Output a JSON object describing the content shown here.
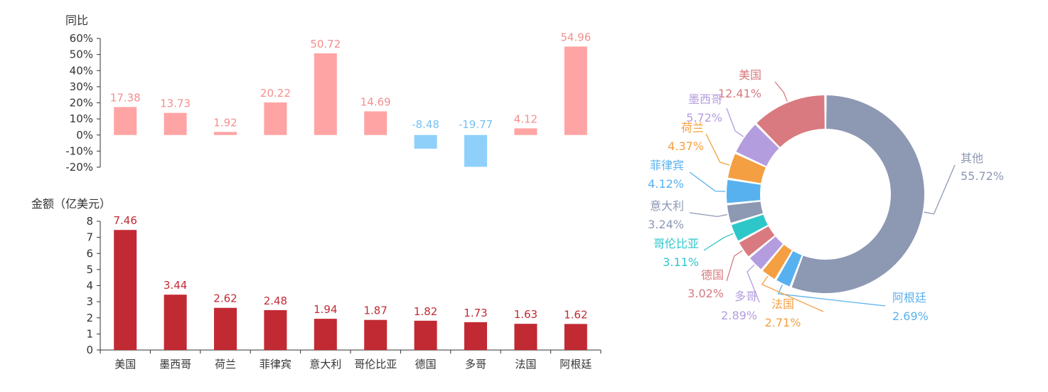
{
  "chart_data": [
    {
      "type": "bar",
      "ylabel": "同比",
      "categories": [
        "美国",
        "墨西哥",
        "荷兰",
        "菲律宾",
        "意大利",
        "哥伦比亚",
        "德国",
        "多哥",
        "法国",
        "阿根廷"
      ],
      "values": [
        17.38,
        13.73,
        1.92,
        20.22,
        50.72,
        14.69,
        -8.48,
        -19.77,
        4.12,
        54.96
      ],
      "value_labels": [
        "17.38",
        "13.73",
        "1.92",
        "20.22",
        "50.72",
        "14.69",
        "-8.48",
        "-19.77",
        "4.12",
        "54.96"
      ],
      "ylim": [
        -20,
        60
      ],
      "yticks": [
        "60%",
        "50%",
        "40%",
        "30%",
        "20%",
        "10%",
        "0%",
        "-10%",
        "-20%"
      ],
      "colors": {
        "positive": "#ffa4a4",
        "negative": "#8fd0fb",
        "positive_label": "#f48f8f",
        "negative_label": "#76c2f2"
      }
    },
    {
      "type": "bar",
      "ylabel": "金额（亿美元）",
      "categories": [
        "美国",
        "墨西哥",
        "荷兰",
        "菲律宾",
        "意大利",
        "哥伦比亚",
        "德国",
        "多哥",
        "法国",
        "阿根廷"
      ],
      "values": [
        7.46,
        3.44,
        2.62,
        2.48,
        1.94,
        1.87,
        1.82,
        1.73,
        1.63,
        1.62
      ],
      "value_labels": [
        "7.46",
        "3.44",
        "2.62",
        "2.48",
        "1.94",
        "1.87",
        "1.82",
        "1.73",
        "1.63",
        "1.62"
      ],
      "ylim": [
        0,
        8
      ],
      "yticks": [
        "8",
        "7",
        "6",
        "5",
        "4",
        "3",
        "2",
        "1",
        "0"
      ],
      "colors": {
        "bar": "#c22a33",
        "label": "#c22a33"
      }
    },
    {
      "type": "pie",
      "donut": true,
      "slices": [
        {
          "label": "其他",
          "pct_label": "55.72%",
          "value": 55.72,
          "color": "#8d98b3"
        },
        {
          "label": "阿根廷",
          "pct_label": "2.69%",
          "value": 2.69,
          "color": "#58b1ef"
        },
        {
          "label": "法国",
          "pct_label": "2.71%",
          "value": 2.71,
          "color": "#f49f42"
        },
        {
          "label": "多哥",
          "pct_label": "2.89%",
          "value": 2.89,
          "color": "#b49ddf"
        },
        {
          "label": "德国",
          "pct_label": "3.02%",
          "value": 3.02,
          "color": "#d87a80"
        },
        {
          "label": "哥伦比亚",
          "pct_label": "3.11%",
          "value": 3.11,
          "color": "#2ec7c9"
        },
        {
          "label": "意大利",
          "pct_label": "3.24%",
          "value": 3.24,
          "color": "#8d98b3"
        },
        {
          "label": "菲律宾",
          "pct_label": "4.12%",
          "value": 4.12,
          "color": "#58b1ef"
        },
        {
          "label": "荷兰",
          "pct_label": "4.37%",
          "value": 4.37,
          "color": "#f49f42"
        },
        {
          "label": "墨西哥",
          "pct_label": "5.72%",
          "value": 5.72,
          "color": "#b49ddf"
        },
        {
          "label": "美国",
          "pct_label": "12.41%",
          "value": 12.41,
          "color": "#d87a80"
        }
      ]
    }
  ]
}
